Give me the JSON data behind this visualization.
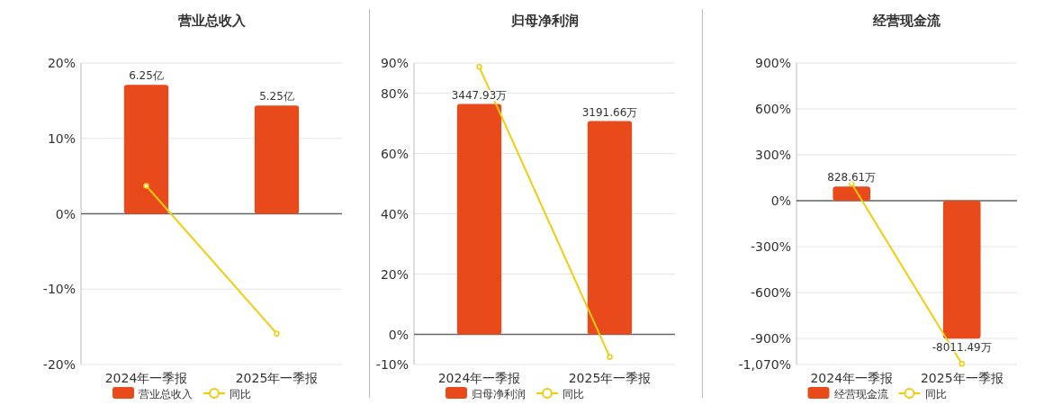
{
  "chart_data": [
    {
      "type": "bar",
      "title": "营业总收入",
      "categories": [
        "2024年一季报",
        "2025年一季报"
      ],
      "ylim": [
        -20,
        20
      ],
      "yticks": [
        {
          "value": -20,
          "label": "-20%"
        },
        {
          "value": -10,
          "label": "-10%"
        },
        {
          "value": 0,
          "label": "0%"
        },
        {
          "value": 10,
          "label": "10%"
        },
        {
          "value": 20,
          "label": "20%"
        }
      ],
      "y2lim": [
        -7.31,
        7.31
      ],
      "grid": "y",
      "legend": "bottom",
      "series": [
        {
          "name": "营业总收入",
          "axis": "y2",
          "color": "#e84a1c",
          "values": [
            6.25,
            5.25
          ],
          "value_labels": [
            "6.25亿",
            "5.25亿"
          ]
        },
        {
          "name": "同比",
          "type": "line",
          "axis": "y",
          "color": "#f2cc0c",
          "marker": "circle",
          "values": [
            3.7,
            -15.9
          ]
        }
      ]
    },
    {
      "type": "bar",
      "title": "归母净利润",
      "categories": [
        "2024年一季报",
        "2025年一季报"
      ],
      "ylim": [
        -10,
        90
      ],
      "yticks": [
        {
          "value": -10,
          "label": "-10%"
        },
        {
          "value": 0,
          "label": "0%"
        },
        {
          "value": 20,
          "label": "20%"
        },
        {
          "value": 40,
          "label": "40%"
        },
        {
          "value": 60,
          "label": "60%"
        },
        {
          "value": 80,
          "label": "80%"
        },
        {
          "value": 90,
          "label": "90%"
        }
      ],
      "y2lim": [
        -451,
        4061
      ],
      "grid": "y",
      "legend": "bottom",
      "series": [
        {
          "name": "归母净利润",
          "axis": "y2",
          "color": "#e84a1c",
          "values": [
            3447.93,
            3191.66
          ],
          "value_labels": [
            "3447.93万",
            "3191.66万"
          ]
        },
        {
          "name": "同比",
          "type": "line",
          "axis": "y",
          "color": "#f2cc0c",
          "marker": "circle",
          "values": [
            88.7,
            -7.5
          ]
        }
      ]
    },
    {
      "type": "bar",
      "title": "经营现金流",
      "categories": [
        "2024年一季报",
        "2025年一季报"
      ],
      "ylim": [
        -1070,
        900
      ],
      "yticks": [
        {
          "value": -1070,
          "label": "-1,070%"
        },
        {
          "value": -900,
          "label": "-900%"
        },
        {
          "value": -600,
          "label": "-600%"
        },
        {
          "value": -300,
          "label": "-300%"
        },
        {
          "value": 0,
          "label": "0%"
        },
        {
          "value": 300,
          "label": "300%"
        },
        {
          "value": 600,
          "label": "600%"
        },
        {
          "value": 900,
          "label": "900%"
        }
      ],
      "y2lim": [
        -9511,
        8000
      ],
      "grid": "y",
      "legend": "bottom",
      "series": [
        {
          "name": "经营现金流",
          "axis": "y2",
          "color": "#e84a1c",
          "values": [
            828.61,
            -8011.49
          ],
          "value_labels": [
            "828.61万",
            "-8011.49万"
          ]
        },
        {
          "name": "同比",
          "type": "line",
          "axis": "y",
          "color": "#f2cc0c",
          "marker": "circle",
          "values": [
            112,
            -1066
          ]
        }
      ]
    }
  ]
}
